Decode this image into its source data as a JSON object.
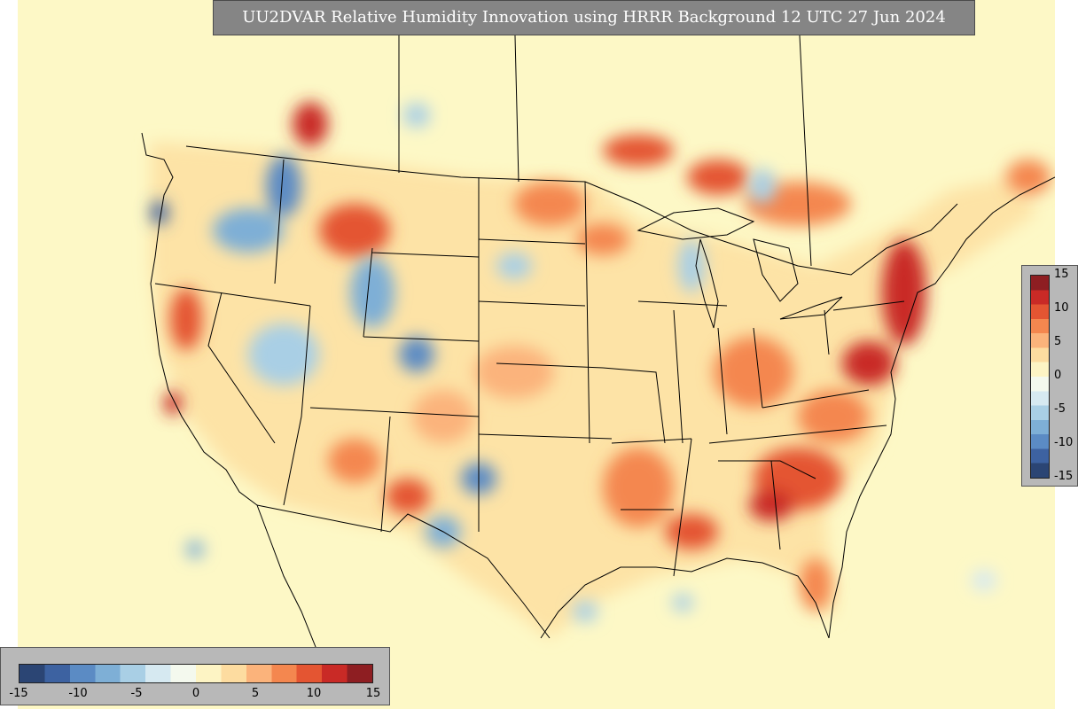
{
  "title": "UU2DVAR Relative Humidity Innovation using HRRR Background 12 UTC 27 Jun 2024",
  "colorbar": {
    "min": -15,
    "max": 15,
    "ticks_vertical": [
      "15",
      "10",
      "5",
      "0",
      "-5",
      "-10",
      "-15"
    ],
    "ticks_horizontal": [
      "-15",
      "-10",
      "-5",
      "0",
      "5",
      "10",
      "15"
    ],
    "colors": [
      "#2b4574",
      "#3d62a1",
      "#5b8bc4",
      "#7eafd6",
      "#a9cfe5",
      "#d6e9f1",
      "#f4f9ee",
      "#fdf4c4",
      "#fddca0",
      "#fbb37b",
      "#f4874f",
      "#e45532",
      "#c92a26",
      "#8e1e22"
    ]
  },
  "map": {
    "background_color": "#fdf7c4",
    "line_color": "#000000"
  }
}
